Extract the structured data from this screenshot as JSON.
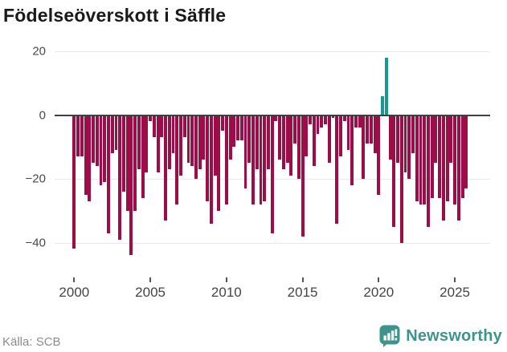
{
  "title": "Födelseöverskott i Säffle",
  "source": "Källa: SCB",
  "branding": {
    "name": "Newsworthy",
    "color": "#3e948c",
    "icon": "newsworthy-speech-bubble-barchart"
  },
  "chart_data": {
    "type": "bar",
    "title": "Födelseöverskott i Säffle",
    "frequency": "quarterly",
    "start": "2000-Q1",
    "end": "2025-Q4",
    "xlabel": "",
    "ylabel": "",
    "x_tick_years": [
      2000,
      2005,
      2010,
      2015,
      2020,
      2025
    ],
    "x_tick_labels": [
      "2000",
      "2005",
      "2010",
      "2015",
      "2020",
      "2025"
    ],
    "y_ticks": [
      20,
      0,
      -20,
      -40
    ],
    "y_tick_labels": [
      "20",
      "0",
      "−20",
      "−40"
    ],
    "ylim": [
      -47,
      23
    ],
    "grid": true,
    "legend": false,
    "negative_color": "#9d0e49",
    "positive_color": "#159a91",
    "values": [
      -42,
      -13,
      -13,
      -25,
      -27,
      -15,
      -16,
      -22,
      -21,
      -37,
      -12,
      -11,
      -39,
      -24,
      -30,
      -44,
      -30,
      -17,
      -26,
      -18,
      -2,
      -7,
      -18,
      -7,
      -33,
      -17,
      -12,
      -28,
      -19,
      -7,
      -15,
      -16,
      -20,
      -17,
      -14,
      -27,
      -34,
      -19,
      -30,
      -5,
      -28,
      -14,
      -10,
      -8,
      -8,
      -23,
      -15,
      -28,
      -17,
      -28,
      -27,
      -17,
      -37,
      -2,
      -14,
      -17,
      -15,
      -19,
      -9,
      -20,
      -38,
      -13,
      -3,
      -16,
      -6,
      -4,
      -3,
      -15,
      -1,
      -34,
      -13,
      -2,
      -11,
      -22,
      -4,
      -4,
      -20,
      -9,
      -9,
      -12,
      -25,
      6,
      18,
      -14,
      -35,
      -15,
      -40,
      -18,
      -20,
      -12,
      -27,
      -28,
      -28,
      -35,
      -26,
      -15,
      -26,
      -33,
      -27,
      -15,
      -28,
      -33,
      -26,
      -23
    ]
  }
}
